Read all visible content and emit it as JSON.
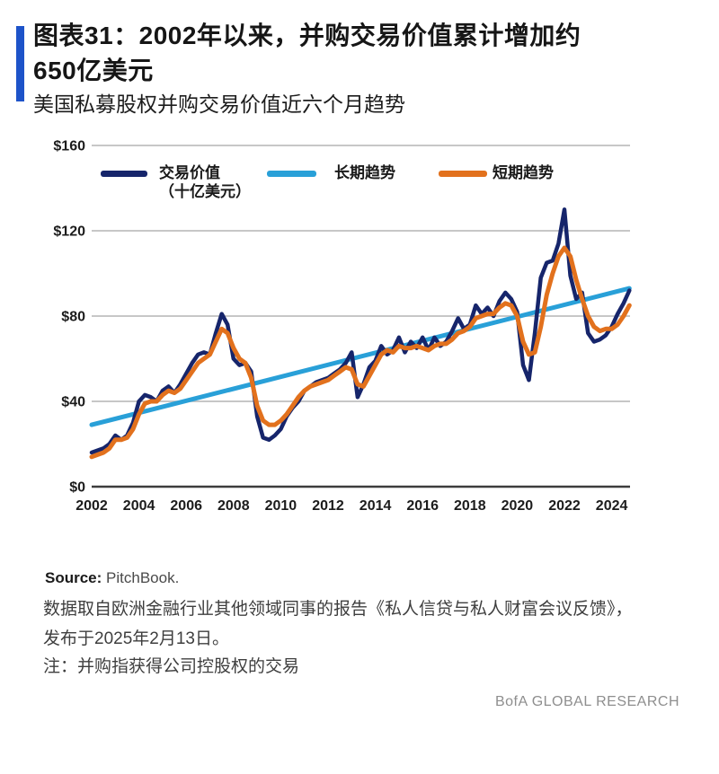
{
  "header": {
    "title_line1": "图表31：2002年以来，并购交易价值累计增加约",
    "title_line2": "650亿美元",
    "subtitle": "美国私募股权并购交易价值近六个月趋势",
    "accent_color": "#1d53c9"
  },
  "chart_data": {
    "type": "line",
    "title": "美国私募股权并购交易价值近六个月趋势",
    "xlabel": "",
    "ylabel": "十亿美元",
    "ylim": [
      0,
      160
    ],
    "xlim": [
      2002,
      2024.8
    ],
    "grid": true,
    "legend_position": "top",
    "y_ticks": [
      {
        "label": "$160",
        "value": 160
      },
      {
        "label": "$120",
        "value": 120
      },
      {
        "label": "$80",
        "value": 80
      },
      {
        "label": "$40",
        "value": 40
      },
      {
        "label": "$0",
        "value": 0
      }
    ],
    "x_ticks": [
      2002,
      2004,
      2006,
      2008,
      2010,
      2012,
      2014,
      2016,
      2018,
      2020,
      2022,
      2024
    ],
    "x_start": 2002,
    "x_step_years": 0.25,
    "series": [
      {
        "key": "deal-value",
        "name": "交易价值（十亿美元）",
        "color": "#16256b",
        "stroke_width": 4.5,
        "draw_order": 2,
        "values": [
          16,
          17,
          18,
          20,
          24,
          22,
          24,
          30,
          40,
          43,
          42,
          40,
          45,
          47,
          44,
          48,
          53,
          58,
          62,
          63,
          62,
          72,
          81,
          76,
          60,
          57,
          58,
          54,
          33,
          23,
          22,
          24,
          27,
          33,
          37,
          40,
          45,
          47,
          49,
          50,
          51,
          53,
          55,
          58,
          63,
          42,
          48,
          56,
          59,
          66,
          62,
          64,
          70,
          63,
          68,
          65,
          70,
          64,
          70,
          66,
          68,
          73,
          79,
          74,
          76,
          85,
          81,
          84,
          80,
          87,
          91,
          88,
          82,
          57,
          50,
          72,
          98,
          105,
          106,
          114,
          130,
          99,
          88,
          91,
          72,
          68,
          69,
          71,
          75,
          81,
          86,
          92
        ]
      },
      {
        "key": "long-term-trend",
        "name": "长期趋势",
        "color": "#29a0d8",
        "stroke_width": 5,
        "draw_order": 1,
        "x": [
          2002,
          2024.75
        ],
        "values": [
          29,
          93
        ]
      },
      {
        "key": "short-term-trend",
        "name": "短期趋势",
        "color": "#e2711d",
        "stroke_width": 5,
        "draw_order": 3,
        "values": [
          14,
          15,
          16,
          18,
          22,
          22,
          23,
          27,
          34,
          39,
          40,
          40,
          43,
          45,
          44,
          46,
          50,
          54,
          58,
          60,
          62,
          68,
          74,
          72,
          65,
          60,
          58,
          51,
          38,
          31,
          29,
          29,
          31,
          34,
          38,
          42,
          45,
          47,
          48,
          49,
          50,
          52,
          54,
          56,
          55,
          48,
          47,
          52,
          57,
          62,
          64,
          63,
          66,
          65,
          65,
          66,
          65,
          64,
          66,
          67,
          67,
          69,
          72,
          73,
          75,
          79,
          80,
          81,
          81,
          84,
          86,
          85,
          80,
          68,
          62,
          63,
          75,
          90,
          100,
          108,
          112,
          108,
          97,
          88,
          80,
          75,
          73,
          74,
          74,
          76,
          80,
          85
        ]
      }
    ],
    "legend": [
      {
        "label_line1": "交易价值",
        "label_line2": "（十亿美元）",
        "color": "#16256b"
      },
      {
        "label_line1": "长期趋势",
        "label_line2": "",
        "color": "#29a0d8"
      },
      {
        "label_line1": "短期趋势",
        "label_line2": "",
        "color": "#e2711d"
      }
    ],
    "gridline_color": "#bfbfbf",
    "zero_axis_color": "#3d3d3d"
  },
  "footer": {
    "source_word": "Source:",
    "source_value": "PitchBook.",
    "note_line1": "数据取自欧洲金融行业其他领域同事的报告《私人信贷与私人财富会议反馈》，",
    "note_line2": "发布于2025年2月13日。",
    "note_line3": "注：并购指获得公司控股权的交易"
  },
  "branding": "BofA GLOBAL RESEARCH"
}
